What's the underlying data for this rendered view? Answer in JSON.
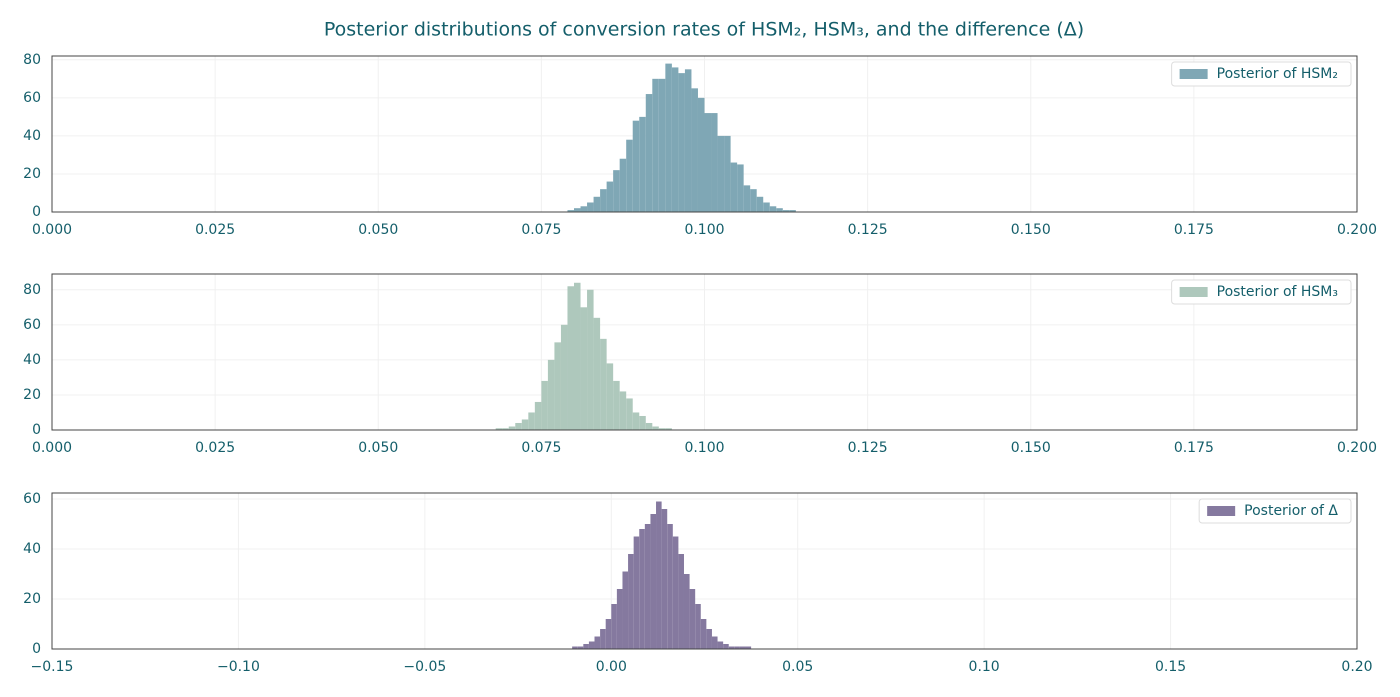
{
  "title": "Posterior distributions of conversion rates of HSM₂, HSM₃, and the difference (Δ)",
  "chart_data": [
    {
      "type": "histogram",
      "bins": [
        0.079,
        0.08,
        0.081,
        0.082,
        0.083,
        0.084,
        0.085,
        0.086,
        0.087,
        0.088,
        0.089,
        0.09,
        0.091,
        0.092,
        0.093,
        0.094,
        0.095,
        0.096,
        0.097,
        0.098,
        0.099,
        0.1,
        0.101,
        0.102,
        0.103,
        0.104,
        0.105,
        0.106,
        0.107,
        0.108,
        0.109,
        0.11,
        0.111,
        0.112,
        0.113,
        0.114
      ],
      "series": [
        {
          "name": "Posterior of HSM₂",
          "color": "#7fa7b5",
          "values": [
            1,
            2,
            3,
            5,
            8,
            12,
            16,
            22,
            28,
            38,
            48,
            50,
            62,
            70,
            70,
            78,
            76,
            73,
            75,
            65,
            60,
            52,
            52,
            40,
            40,
            26,
            25,
            14,
            12,
            8,
            5,
            3,
            2,
            1,
            1
          ]
        }
      ],
      "xlim": [
        0,
        0.2
      ],
      "xticks": [
        {
          "value": 0,
          "label": "0.000"
        },
        {
          "value": 0.025,
          "label": "0.025"
        },
        {
          "value": 0.05,
          "label": "0.050"
        },
        {
          "value": 0.075,
          "label": "0.075"
        },
        {
          "value": 0.1,
          "label": "0.100"
        },
        {
          "value": 0.125,
          "label": "0.125"
        },
        {
          "value": 0.15,
          "label": "0.150"
        },
        {
          "value": 0.175,
          "label": "0.175"
        },
        {
          "value": 0.2,
          "label": "0.200"
        }
      ],
      "ylim": [
        0,
        82
      ],
      "yticks": [
        0,
        20,
        40,
        60,
        80
      ],
      "grid": true,
      "legend": "upper right"
    },
    {
      "type": "histogram",
      "bins": [
        0.068,
        0.069,
        0.07,
        0.071,
        0.072,
        0.073,
        0.074,
        0.075,
        0.076,
        0.077,
        0.078,
        0.079,
        0.08,
        0.081,
        0.082,
        0.083,
        0.084,
        0.085,
        0.086,
        0.087,
        0.088,
        0.089,
        0.09,
        0.091,
        0.092,
        0.093,
        0.094,
        0.095
      ],
      "series": [
        {
          "name": "Posterior of HSM₃",
          "color": "#aec8bc",
          "values": [
            1,
            1,
            2,
            4,
            6,
            10,
            16,
            28,
            40,
            50,
            60,
            82,
            84,
            70,
            80,
            64,
            52,
            38,
            28,
            22,
            18,
            10,
            8,
            4,
            2,
            1,
            1
          ]
        }
      ],
      "xlim": [
        0,
        0.2
      ],
      "xticks": [
        {
          "value": 0,
          "label": "0.000"
        },
        {
          "value": 0.025,
          "label": "0.025"
        },
        {
          "value": 0.05,
          "label": "0.050"
        },
        {
          "value": 0.075,
          "label": "0.075"
        },
        {
          "value": 0.1,
          "label": "0.100"
        },
        {
          "value": 0.125,
          "label": "0.125"
        },
        {
          "value": 0.15,
          "label": "0.150"
        },
        {
          "value": 0.175,
          "label": "0.175"
        },
        {
          "value": 0.2,
          "label": "0.200"
        }
      ],
      "ylim": [
        0,
        89
      ],
      "yticks": [
        0,
        20,
        40,
        60,
        80
      ],
      "grid": true,
      "legend": "upper right"
    },
    {
      "type": "histogram",
      "bins": [
        -0.0105,
        -0.009,
        -0.0075,
        -0.006,
        -0.0045,
        -0.003,
        -0.0015,
        0,
        0.0015,
        0.003,
        0.0045,
        0.006,
        0.0075,
        0.009,
        0.0105,
        0.012,
        0.0135,
        0.015,
        0.0165,
        0.018,
        0.0195,
        0.021,
        0.0225,
        0.024,
        0.0255,
        0.027,
        0.0285,
        0.03,
        0.0315,
        0.033,
        0.0345,
        0.036,
        0.0375
      ],
      "series": [
        {
          "name": "Posterior of Δ",
          "color": "#85799f",
          "values": [
            1,
            1,
            2,
            3,
            5,
            8,
            12,
            18,
            24,
            31,
            38,
            45,
            48,
            50,
            54,
            59,
            56,
            50,
            45,
            38,
            30,
            24,
            18,
            12,
            8,
            5,
            3,
            2,
            1,
            1,
            1,
            1
          ]
        }
      ],
      "xlim": [
        -0.15,
        0.2
      ],
      "xticks": [
        {
          "value": -0.15,
          "label": "−0.15"
        },
        {
          "value": -0.1,
          "label": "−0.10"
        },
        {
          "value": -0.05,
          "label": "−0.05"
        },
        {
          "value": 0,
          "label": "0.00"
        },
        {
          "value": 0.05,
          "label": "0.05"
        },
        {
          "value": 0.1,
          "label": "0.10"
        },
        {
          "value": 0.15,
          "label": "0.15"
        },
        {
          "value": 0.2,
          "label": "0.20"
        }
      ],
      "ylim": [
        0,
        62.4
      ],
      "yticks": [
        0,
        20,
        40,
        60
      ],
      "grid": true,
      "legend": "upper right"
    }
  ]
}
